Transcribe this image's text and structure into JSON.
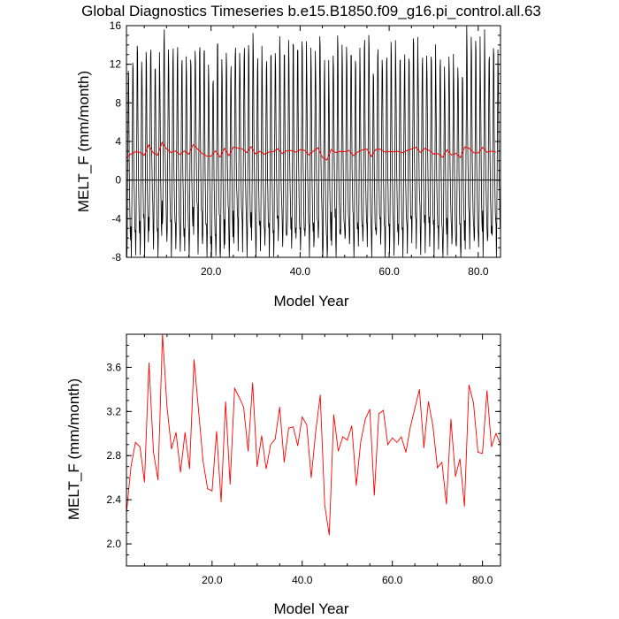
{
  "title": "Global Diagnostics Timeseries b.e15.B1850.f09_g16.pi_control.all.63",
  "colors": {
    "monthly": "#000000",
    "annual": "#ff0000",
    "axis": "#000000"
  },
  "chart_data": [
    {
      "type": "line",
      "title": "Global Diagnostics Timeseries b.e15.B1850.f09_g16.pi_control.all.63",
      "xlabel": "Model Year",
      "ylabel": "MELT_F (mm/month)",
      "xlim": [
        1,
        85
      ],
      "ylim": [
        -8,
        16
      ],
      "xticks": [
        20,
        40,
        60,
        80
      ],
      "xtick_labels": [
        "20.0",
        "40.0",
        "60.0",
        "80.0"
      ],
      "yticks": [
        -8,
        -4,
        0,
        4,
        8,
        12,
        16
      ],
      "ytick_labels": [
        "-8",
        "-4",
        "0",
        "4",
        "8",
        "12",
        "16"
      ],
      "zero_line": true,
      "grid": false,
      "series": [
        {
          "role": "monthly",
          "color": "#000000",
          "annual_cycle_mm_month": [
            -4.8,
            -7.3,
            -5.1,
            1.0,
            6.5,
            13.2,
            12.1,
            6.4,
            1.5,
            -1.2,
            -3.6,
            -4.6
          ],
          "years": 84
        },
        {
          "role": "annual_mean",
          "color": "#ff0000",
          "x": [
            1,
            2,
            3,
            4,
            5,
            6,
            7,
            8,
            9,
            10,
            11,
            12,
            13,
            14,
            15,
            16,
            17,
            18,
            19,
            20,
            21,
            22,
            23,
            24,
            25,
            26,
            27,
            28,
            29,
            30,
            31,
            32,
            33,
            34,
            35,
            36,
            37,
            38,
            39,
            40,
            41,
            42,
            43,
            44,
            45,
            46,
            47,
            48,
            49,
            50,
            51,
            52,
            53,
            54,
            55,
            56,
            57,
            58,
            59,
            60,
            61,
            62,
            63,
            64,
            65,
            66,
            67,
            68,
            69,
            70,
            71,
            72,
            73,
            74,
            75,
            76,
            77,
            78,
            79,
            80,
            81,
            82,
            83,
            84
          ],
          "values": [
            2.28,
            2.7,
            2.92,
            2.88,
            2.56,
            3.64,
            2.83,
            2.58,
            3.9,
            3.24,
            2.86,
            3.01,
            2.65,
            3.01,
            2.68,
            3.67,
            3.21,
            2.75,
            2.5,
            2.48,
            3.02,
            2.38,
            3.29,
            2.54,
            3.41,
            3.33,
            3.24,
            2.84,
            3.46,
            2.7,
            2.98,
            2.68,
            2.9,
            2.95,
            3.24,
            2.74,
            3.05,
            3.06,
            2.89,
            3.15,
            3.08,
            2.6,
            3.02,
            3.35,
            2.35,
            2.08,
            3.17,
            2.84,
            2.97,
            2.94,
            3.07,
            2.53,
            2.93,
            3.13,
            3.22,
            2.44,
            3.18,
            3.21,
            2.9,
            2.96,
            2.92,
            2.97,
            2.83,
            3.06,
            3.23,
            3.4,
            2.87,
            3.29,
            3.07,
            2.69,
            2.74,
            2.36,
            3.13,
            2.61,
            2.77,
            2.34,
            3.44,
            3.28,
            2.83,
            2.82,
            3.39,
            2.88,
            3.0,
            2.9
          ]
        }
      ]
    },
    {
      "type": "line",
      "xlabel": "Model Year",
      "ylabel": "MELT_F (mm/month)",
      "xlim": [
        1,
        84
      ],
      "ylim": [
        1.8,
        3.9
      ],
      "xticks": [
        20,
        40,
        60,
        80
      ],
      "xtick_labels": [
        "20.0",
        "40.0",
        "60.0",
        "80.0"
      ],
      "yticks": [
        2.0,
        2.4,
        2.8,
        3.2,
        3.6
      ],
      "ytick_labels": [
        "2.0",
        "2.4",
        "2.8",
        "3.2",
        "3.6"
      ],
      "grid": false,
      "series": [
        {
          "role": "annual_mean",
          "color": "#ff0000",
          "from_series": "annual_mean"
        }
      ]
    }
  ]
}
